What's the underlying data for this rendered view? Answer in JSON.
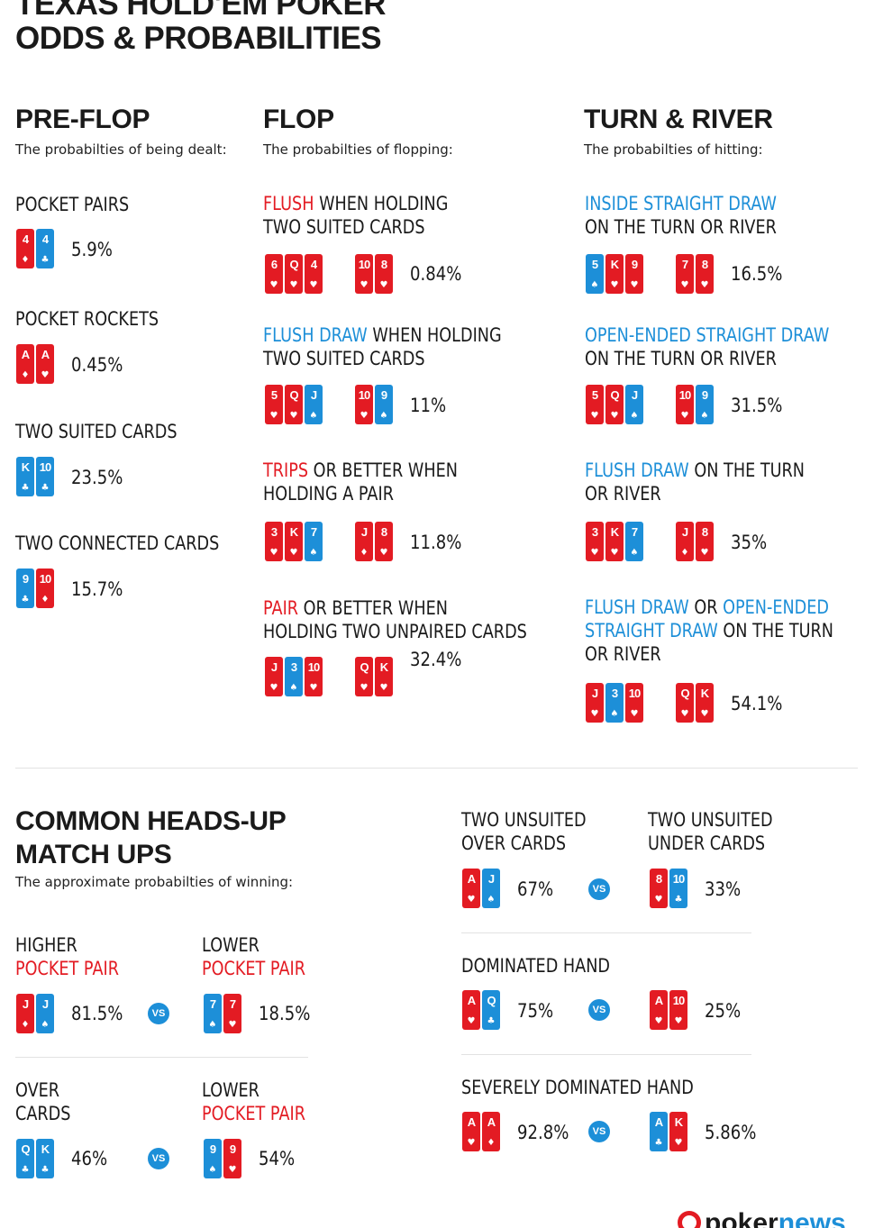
{
  "title": [
    "TEXAS HOLD'EM POKER",
    "ODDS & PROBABILITIES"
  ],
  "sections": {
    "preflop": {
      "title": "PRE-FLOP",
      "subtitle": "The probabilties of being dealt:",
      "items": [
        {
          "label": [
            [
              [
                "POCKET PAIRS",
                ""
              ]
            ]
          ],
          "pct": "5.9%",
          "cards": [
            [
              {
                "rank": "4",
                "suit": "♦",
                "color": "r"
              },
              {
                "rank": "4",
                "suit": "♣",
                "color": "b"
              }
            ]
          ]
        },
        {
          "label": [
            [
              [
                "POCKET ROCKETS",
                ""
              ]
            ]
          ],
          "pct": "0.45%",
          "cards": [
            [
              {
                "rank": "A",
                "suit": "♦",
                "color": "r"
              },
              {
                "rank": "A",
                "suit": "♥",
                "color": "r"
              }
            ]
          ]
        },
        {
          "label": [
            [
              [
                "TWO SUITED CARDS",
                ""
              ]
            ]
          ],
          "pct": "23.5%",
          "cards": [
            [
              {
                "rank": "K",
                "suit": "♣",
                "color": "b"
              },
              {
                "rank": "10",
                "suit": "♣",
                "color": "b"
              }
            ]
          ]
        },
        {
          "label": [
            [
              [
                "TWO CONNECTED CARDS",
                ""
              ]
            ]
          ],
          "pct": "15.7%",
          "cards": [
            [
              {
                "rank": "9",
                "suit": "♣",
                "color": "b"
              },
              {
                "rank": "10",
                "suit": "♦",
                "color": "r"
              }
            ]
          ]
        }
      ]
    },
    "flop": {
      "title": "FLOP",
      "subtitle": "The probabilties of flopping:",
      "items": [
        {
          "label": [
            [
              [
                "FLUSH",
                "red"
              ],
              [
                " WHEN HOLDING",
                ""
              ]
            ],
            [
              [
                "TWO SUITED CARDS",
                ""
              ]
            ]
          ],
          "pct": "0.84%",
          "cards": [
            [
              {
                "rank": "6",
                "suit": "♥",
                "color": "r"
              },
              {
                "rank": "Q",
                "suit": "♥",
                "color": "r"
              },
              {
                "rank": "4",
                "suit": "♥",
                "color": "r"
              }
            ],
            [
              {
                "rank": "10",
                "suit": "♥",
                "color": "r"
              },
              {
                "rank": "8",
                "suit": "♥",
                "color": "r"
              }
            ]
          ]
        },
        {
          "label": [
            [
              [
                "FLUSH DRAW",
                "blue"
              ],
              [
                " WHEN HOLDING",
                ""
              ]
            ],
            [
              [
                "TWO SUITED CARDS",
                ""
              ]
            ]
          ],
          "pct": "11%",
          "cards": [
            [
              {
                "rank": "5",
                "suit": "♥",
                "color": "r"
              },
              {
                "rank": "Q",
                "suit": "♥",
                "color": "r"
              },
              {
                "rank": "J",
                "suit": "♠",
                "color": "b"
              }
            ],
            [
              {
                "rank": "10",
                "suit": "♥",
                "color": "r"
              },
              {
                "rank": "9",
                "suit": "♠",
                "color": "b"
              }
            ]
          ]
        },
        {
          "label": [
            [
              [
                "TRIPS",
                "red"
              ],
              [
                " OR BETTER WHEN",
                ""
              ]
            ],
            [
              [
                "HOLDING A PAIR",
                ""
              ]
            ]
          ],
          "pct": "11.8%",
          "cards": [
            [
              {
                "rank": "3",
                "suit": "♥",
                "color": "r"
              },
              {
                "rank": "K",
                "suit": "♥",
                "color": "r"
              },
              {
                "rank": "7",
                "suit": "♠",
                "color": "b"
              }
            ],
            [
              {
                "rank": "J",
                "suit": "♦",
                "color": "r"
              },
              {
                "rank": "8",
                "suit": "♥",
                "color": "r"
              }
            ]
          ]
        },
        {
          "label": [
            [
              [
                "PAIR",
                "red"
              ],
              [
                " OR BETTER WHEN",
                ""
              ]
            ],
            [
              [
                "HOLDING TWO UNPAIRED CARDS",
                ""
              ]
            ]
          ],
          "pct": "32.4%",
          "cards": [
            [
              {
                "rank": "J",
                "suit": "♥",
                "color": "r"
              },
              {
                "rank": "3",
                "suit": "♠",
                "color": "b"
              },
              {
                "rank": "10",
                "suit": "♥",
                "color": "r"
              }
            ],
            [
              {
                "rank": "Q",
                "suit": "♥",
                "color": "r"
              },
              {
                "rank": "K",
                "suit": "♥",
                "color": "r"
              }
            ]
          ]
        }
      ]
    },
    "turnriver": {
      "title": "TURN & RIVER",
      "subtitle": "The probabilties of hitting:",
      "items": [
        {
          "label": [
            [
              [
                "INSIDE STRAIGHT DRAW",
                "blue"
              ]
            ],
            [
              [
                "ON THE TURN OR RIVER",
                ""
              ]
            ]
          ],
          "pct": "16.5%",
          "cards": [
            [
              {
                "rank": "5",
                "suit": "♠",
                "color": "b"
              },
              {
                "rank": "K",
                "suit": "♥",
                "color": "r"
              },
              {
                "rank": "9",
                "suit": "♥",
                "color": "r"
              }
            ],
            [
              {
                "rank": "7",
                "suit": "♥",
                "color": "r"
              },
              {
                "rank": "8",
                "suit": "♥",
                "color": "r"
              }
            ]
          ]
        },
        {
          "label": [
            [
              [
                "OPEN-ENDED STRAIGHT DRAW",
                "blue"
              ]
            ],
            [
              [
                "ON THE TURN OR RIVER",
                ""
              ]
            ]
          ],
          "pct": "31.5%",
          "cards": [
            [
              {
                "rank": "5",
                "suit": "♥",
                "color": "r"
              },
              {
                "rank": "Q",
                "suit": "♥",
                "color": "r"
              },
              {
                "rank": "J",
                "suit": "♠",
                "color": "b"
              }
            ],
            [
              {
                "rank": "10",
                "suit": "♥",
                "color": "r"
              },
              {
                "rank": "9",
                "suit": "♠",
                "color": "b"
              }
            ]
          ]
        },
        {
          "label": [
            [
              [
                "FLUSH DRAW",
                "blue"
              ],
              [
                " ON THE TURN",
                ""
              ]
            ],
            [
              [
                "OR RIVER",
                ""
              ]
            ]
          ],
          "pct": "35%",
          "cards": [
            [
              {
                "rank": "3",
                "suit": "♥",
                "color": "r"
              },
              {
                "rank": "K",
                "suit": "♥",
                "color": "r"
              },
              {
                "rank": "7",
                "suit": "♠",
                "color": "b"
              }
            ],
            [
              {
                "rank": "J",
                "suit": "♦",
                "color": "r"
              },
              {
                "rank": "8",
                "suit": "♥",
                "color": "r"
              }
            ]
          ]
        },
        {
          "label": [
            [
              [
                "FLUSH DRAW",
                "blue"
              ],
              [
                " OR ",
                ""
              ],
              [
                "OPEN-ENDED",
                "blue"
              ]
            ],
            [
              [
                "STRAIGHT DRAW",
                "blue"
              ],
              [
                " ON THE TURN",
                ""
              ]
            ],
            [
              [
                "OR RIVER",
                ""
              ]
            ]
          ],
          "pct": "54.1%",
          "cards": [
            [
              {
                "rank": "J",
                "suit": "♥",
                "color": "r"
              },
              {
                "rank": "3",
                "suit": "♠",
                "color": "b"
              },
              {
                "rank": "10",
                "suit": "♥",
                "color": "r"
              }
            ],
            [
              {
                "rank": "Q",
                "suit": "♥",
                "color": "r"
              },
              {
                "rank": "K",
                "suit": "♥",
                "color": "r"
              }
            ]
          ]
        }
      ]
    },
    "headsup": {
      "title": [
        "COMMON HEADS-UP",
        "MATCH UPS"
      ],
      "subtitle": "The approximate probabilties of winning:",
      "vs_label": "VS",
      "matchups": [
        {
          "left": {
            "label": [
              [
                [
                  "HIGHER",
                  ""
                ]
              ],
              [
                [
                  "POCKET PAIR",
                  "red"
                ]
              ]
            ],
            "pct": "81.5%",
            "cards": [
              {
                "rank": "J",
                "suit": "♦",
                "color": "r"
              },
              {
                "rank": "J",
                "suit": "♠",
                "color": "b"
              }
            ]
          },
          "right": {
            "label": [
              [
                [
                  "LOWER",
                  ""
                ]
              ],
              [
                [
                  "POCKET PAIR",
                  "red"
                ]
              ]
            ],
            "pct": "18.5%",
            "cards": [
              {
                "rank": "7",
                "suit": "♠",
                "color": "b"
              },
              {
                "rank": "7",
                "suit": "♥",
                "color": "r"
              }
            ]
          }
        },
        {
          "left": {
            "label": [
              [
                [
                  "OVER",
                  ""
                ]
              ],
              [
                [
                  "CARDS",
                  ""
                ]
              ]
            ],
            "pct": "46%",
            "cards": [
              {
                "rank": "Q",
                "suit": "♣",
                "color": "b"
              },
              {
                "rank": "K",
                "suit": "♣",
                "color": "b"
              }
            ]
          },
          "right": {
            "label": [
              [
                [
                  "LOWER",
                  ""
                ]
              ],
              [
                [
                  "POCKET PAIR",
                  "red"
                ]
              ]
            ],
            "pct": "54%",
            "cards": [
              {
                "rank": "9",
                "suit": "♠",
                "color": "b"
              },
              {
                "rank": "9",
                "suit": "♥",
                "color": "r"
              }
            ]
          }
        },
        {
          "left": {
            "label": [
              [
                [
                  "TWO UNSUITED",
                  ""
                ]
              ],
              [
                [
                  "OVER CARDS",
                  ""
                ]
              ]
            ],
            "pct": "67%",
            "cards": [
              {
                "rank": "A",
                "suit": "♥",
                "color": "r"
              },
              {
                "rank": "J",
                "suit": "♠",
                "color": "b"
              }
            ]
          },
          "right": {
            "label": [
              [
                [
                  "TWO UNSUITED",
                  ""
                ]
              ],
              [
                [
                  "UNDER CARDS",
                  ""
                ]
              ]
            ],
            "pct": "33%",
            "cards": [
              {
                "rank": "8",
                "suit": "♥",
                "color": "r"
              },
              {
                "rank": "10",
                "suit": "♣",
                "color": "b"
              }
            ]
          }
        },
        {
          "title": "DOMINATED HAND",
          "left": {
            "pct": "75%",
            "cards": [
              {
                "rank": "A",
                "suit": "♥",
                "color": "r"
              },
              {
                "rank": "Q",
                "suit": "♣",
                "color": "b"
              }
            ]
          },
          "right": {
            "pct": "25%",
            "cards": [
              {
                "rank": "A",
                "suit": "♥",
                "color": "r"
              },
              {
                "rank": "10",
                "suit": "♥",
                "color": "r"
              }
            ]
          }
        },
        {
          "title": "SEVERELY DOMINATED HAND",
          "left": {
            "pct": "92.8%",
            "cards": [
              {
                "rank": "A",
                "suit": "♥",
                "color": "r"
              },
              {
                "rank": "A",
                "suit": "♦",
                "color": "r"
              }
            ]
          },
          "right": {
            "pct": "5.86%",
            "cards": [
              {
                "rank": "A",
                "suit": "♣",
                "color": "b"
              },
              {
                "rank": "K",
                "suit": "♥",
                "color": "r"
              }
            ]
          }
        }
      ]
    }
  },
  "logo": {
    "part1": "poker",
    "part2": "news"
  },
  "colors": {
    "red": "#e31b23",
    "blue": "#1d8fd8",
    "text": "#1a1a1a",
    "divider": "#e2e2e2"
  }
}
